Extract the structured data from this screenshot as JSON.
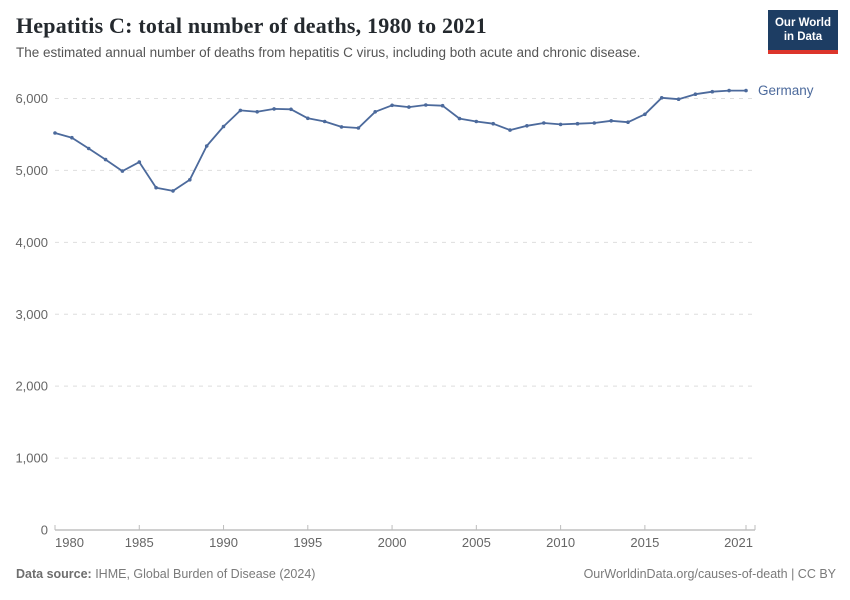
{
  "header": {
    "title": "Hepatitis C: total number of deaths, 1980 to 2021",
    "subtitle": "The estimated annual number of deaths from hepatitis C virus, including both acute and chronic disease.",
    "logo": {
      "line1": "Our World",
      "line2": "in Data"
    }
  },
  "footer": {
    "source_label": "Data source:",
    "source_text": " IHME, Global Burden of Disease (2024)",
    "credit": "OurWorldinData.org/causes-of-death | CC BY"
  },
  "colors": {
    "series_blue": "#4c6a9c",
    "logo_navy": "#1d3d63",
    "logo_red": "#dc352b",
    "gridline": "#dedede",
    "axis": "#a1a1a1",
    "tick_text": "#666666"
  },
  "chart_data": {
    "type": "line",
    "title": "Hepatitis C: total number of deaths, 1980 to 2021",
    "entity": "Germany",
    "x": [
      1980,
      1981,
      1982,
      1983,
      1984,
      1985,
      1986,
      1987,
      1988,
      1989,
      1990,
      1991,
      1992,
      1993,
      1994,
      1995,
      1996,
      1997,
      1998,
      1999,
      2000,
      2001,
      2002,
      2003,
      2004,
      2005,
      2006,
      2007,
      2008,
      2009,
      2010,
      2011,
      2012,
      2013,
      2014,
      2015,
      2016,
      2017,
      2018,
      2019,
      2020,
      2021
    ],
    "series": [
      {
        "name": "Germany",
        "color": "#4c6a9c",
        "values": [
          5520,
          5455,
          5305,
          5150,
          4990,
          5115,
          4760,
          4715,
          4870,
          5340,
          5610,
          5835,
          5815,
          5855,
          5850,
          5725,
          5680,
          5605,
          5590,
          5815,
          5905,
          5880,
          5910,
          5900,
          5720,
          5680,
          5650,
          5560,
          5620,
          5660,
          5640,
          5650,
          5660,
          5690,
          5670,
          5780,
          6010,
          5990,
          6060,
          6095,
          6110,
          6110
        ]
      }
    ],
    "xlabel": "",
    "ylabel": "",
    "x_ticks": [
      1980,
      1985,
      1990,
      1995,
      2000,
      2005,
      2010,
      2015,
      2021
    ],
    "x_tick_labels": [
      "1980",
      "1985",
      "1990",
      "1995",
      "2000",
      "2005",
      "2010",
      "2015",
      "2021"
    ],
    "y_ticks": [
      0,
      1000,
      2000,
      3000,
      4000,
      5000,
      6000
    ],
    "y_tick_labels": [
      "0",
      "1,000",
      "2,000",
      "3,000",
      "4,000",
      "5,000",
      "6,000"
    ],
    "ylim": [
      0,
      6400
    ],
    "grid": "horizontal-dashed",
    "legend_position": "end-of-line-label"
  }
}
